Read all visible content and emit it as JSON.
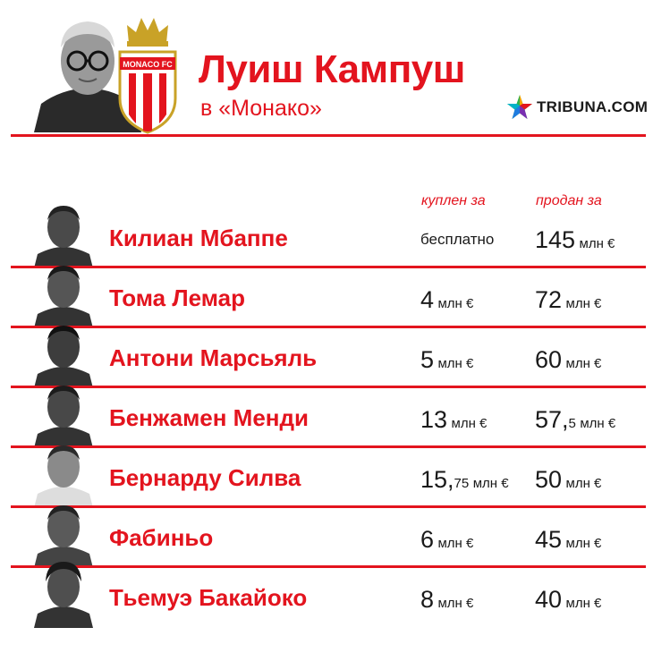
{
  "header": {
    "title": "Луиш Кампуш",
    "subtitle": "в «Монако»",
    "brand": "TRIBUNA.COM",
    "crest_text": "MONACO FC",
    "colors": {
      "accent": "#e3141e",
      "text": "#1a1a1a",
      "crest_gold": "#c9a227"
    }
  },
  "columns": {
    "bought_label": "куплен за",
    "sold_label": "продан за"
  },
  "players": [
    {
      "name": "Килиан Мбаппе",
      "bought_text": "бесплатно",
      "sold_num": "145",
      "sold_unit": "млн €"
    },
    {
      "name": "Тома Лемар",
      "bought_num": "4",
      "bought_unit": "млн €",
      "sold_num": "72",
      "sold_unit": "млн €"
    },
    {
      "name": "Антони Марсьяль",
      "bought_num": "5",
      "bought_unit": "млн €",
      "sold_num": "60",
      "sold_unit": "млн €"
    },
    {
      "name": "Бенжамен Менди",
      "bought_num": "13",
      "bought_unit": "млн €",
      "sold_num": "57,",
      "sold_frac": "5",
      "sold_unit": "млн €"
    },
    {
      "name": "Бернарду Силва",
      "bought_num": "15,",
      "bought_frac": "75",
      "bought_unit": "млн €",
      "sold_num": "50",
      "sold_unit": "млн €"
    },
    {
      "name": "Фабиньо",
      "bought_num": "6",
      "bought_unit": "млн €",
      "sold_num": "45",
      "sold_unit": "млн €"
    },
    {
      "name": "Тьемуэ Бакайоко",
      "bought_num": "8",
      "bought_unit": "млн €",
      "sold_num": "40",
      "sold_unit": "млн €"
    }
  ]
}
